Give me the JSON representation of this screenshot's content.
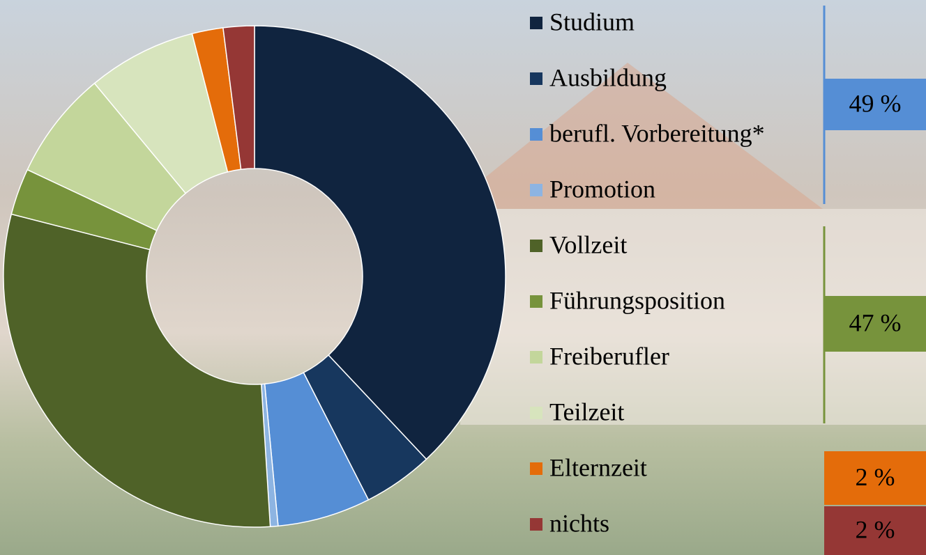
{
  "chart_data": {
    "type": "donut",
    "categories": [
      "Studium",
      "Ausbildung",
      "berufl. Vorbereitung*",
      "Promotion",
      "Vollzeit",
      "Führungsposition",
      "Freiberufler",
      "Teilzeit",
      "Elternzeit",
      "nichts"
    ],
    "values": [
      38,
      4.5,
      6,
      0.5,
      30,
      3,
      7,
      7,
      2,
      2
    ],
    "colors": [
      "#10243f",
      "#17375e",
      "#558ed5",
      "#8db4e2",
      "#4f6228",
      "#77933c",
      "#c3d69b",
      "#d7e4bd",
      "#e46c0a",
      "#953735"
    ],
    "groups": [
      {
        "value": 49,
        "label": "49 %",
        "color": "#558ed5"
      },
      {
        "value": 47,
        "label": "47 %",
        "color": "#77933c"
      },
      {
        "value": 2,
        "label": "2 %",
        "color": "#e46c0a"
      },
      {
        "value": 2,
        "label": "2 %",
        "color": "#953735"
      }
    ]
  }
}
